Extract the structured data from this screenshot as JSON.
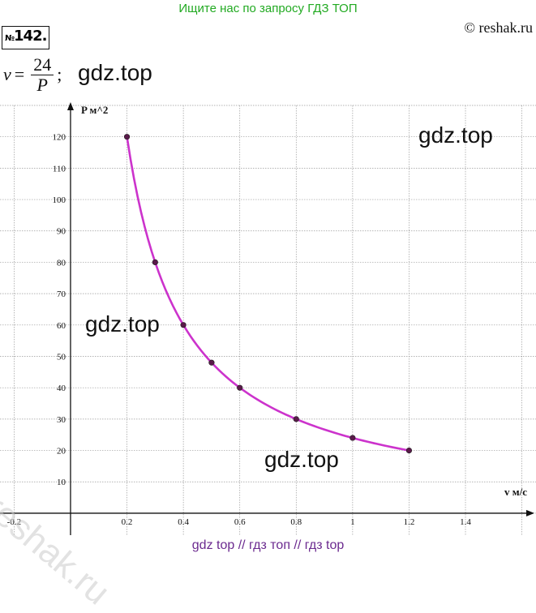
{
  "header": {
    "banner": "Ищите нас по запросу ГДЗ ТОП",
    "copyright": "© reshak.ru",
    "task_no_sign": "№",
    "task_no": "142."
  },
  "formula": {
    "lhs": "v",
    "eq": "=",
    "numerator": "24",
    "denominator": "P",
    "tail": ";"
  },
  "watermarks": [
    "gdz.top",
    "gdz.top",
    "gdz.top",
    "gdz.top"
  ],
  "reshak_watermark": "reshak.ru",
  "footer": "gdz top  //  гдз топ  //  гдз top",
  "chart_data": {
    "type": "line",
    "xlabel": "v м/с",
    "ylabel": "P м^2",
    "xlim": [
      -0.25,
      1.65
    ],
    "ylim": [
      -7,
      130
    ],
    "x_ticks": [
      -0.2,
      0.2,
      0.4,
      0.6,
      0.8,
      1,
      1.2,
      1.4
    ],
    "x_tick_labels": [
      "-0.2",
      "0.2",
      "0.4",
      "0.6",
      "0.8",
      "1",
      "1.2",
      "1.4"
    ],
    "y_ticks": [
      10,
      20,
      30,
      40,
      50,
      60,
      70,
      80,
      90,
      100,
      110,
      120
    ],
    "grid": true,
    "series": [
      {
        "color": "#cc33cc",
        "x": [
          0.2,
          0.3,
          0.4,
          0.5,
          0.6,
          0.8,
          1.0,
          1.2
        ],
        "y": [
          120,
          80,
          60,
          48,
          40,
          30,
          24,
          20
        ]
      }
    ],
    "marker_color": "#5a1a4a"
  }
}
